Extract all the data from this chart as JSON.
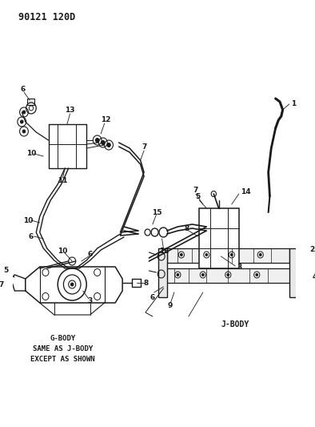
{
  "title_code": "90121 120D",
  "background_color": "#ffffff",
  "line_color": "#1a1a1a",
  "text_color": "#1a1a1a",
  "g_body_label": "G-BODY\nSAME AS J-BODY\nEXCEPT AS SHOWN",
  "j_body_label": "J-BODY",
  "figsize": [
    3.94,
    5.33
  ],
  "dpi": 100
}
